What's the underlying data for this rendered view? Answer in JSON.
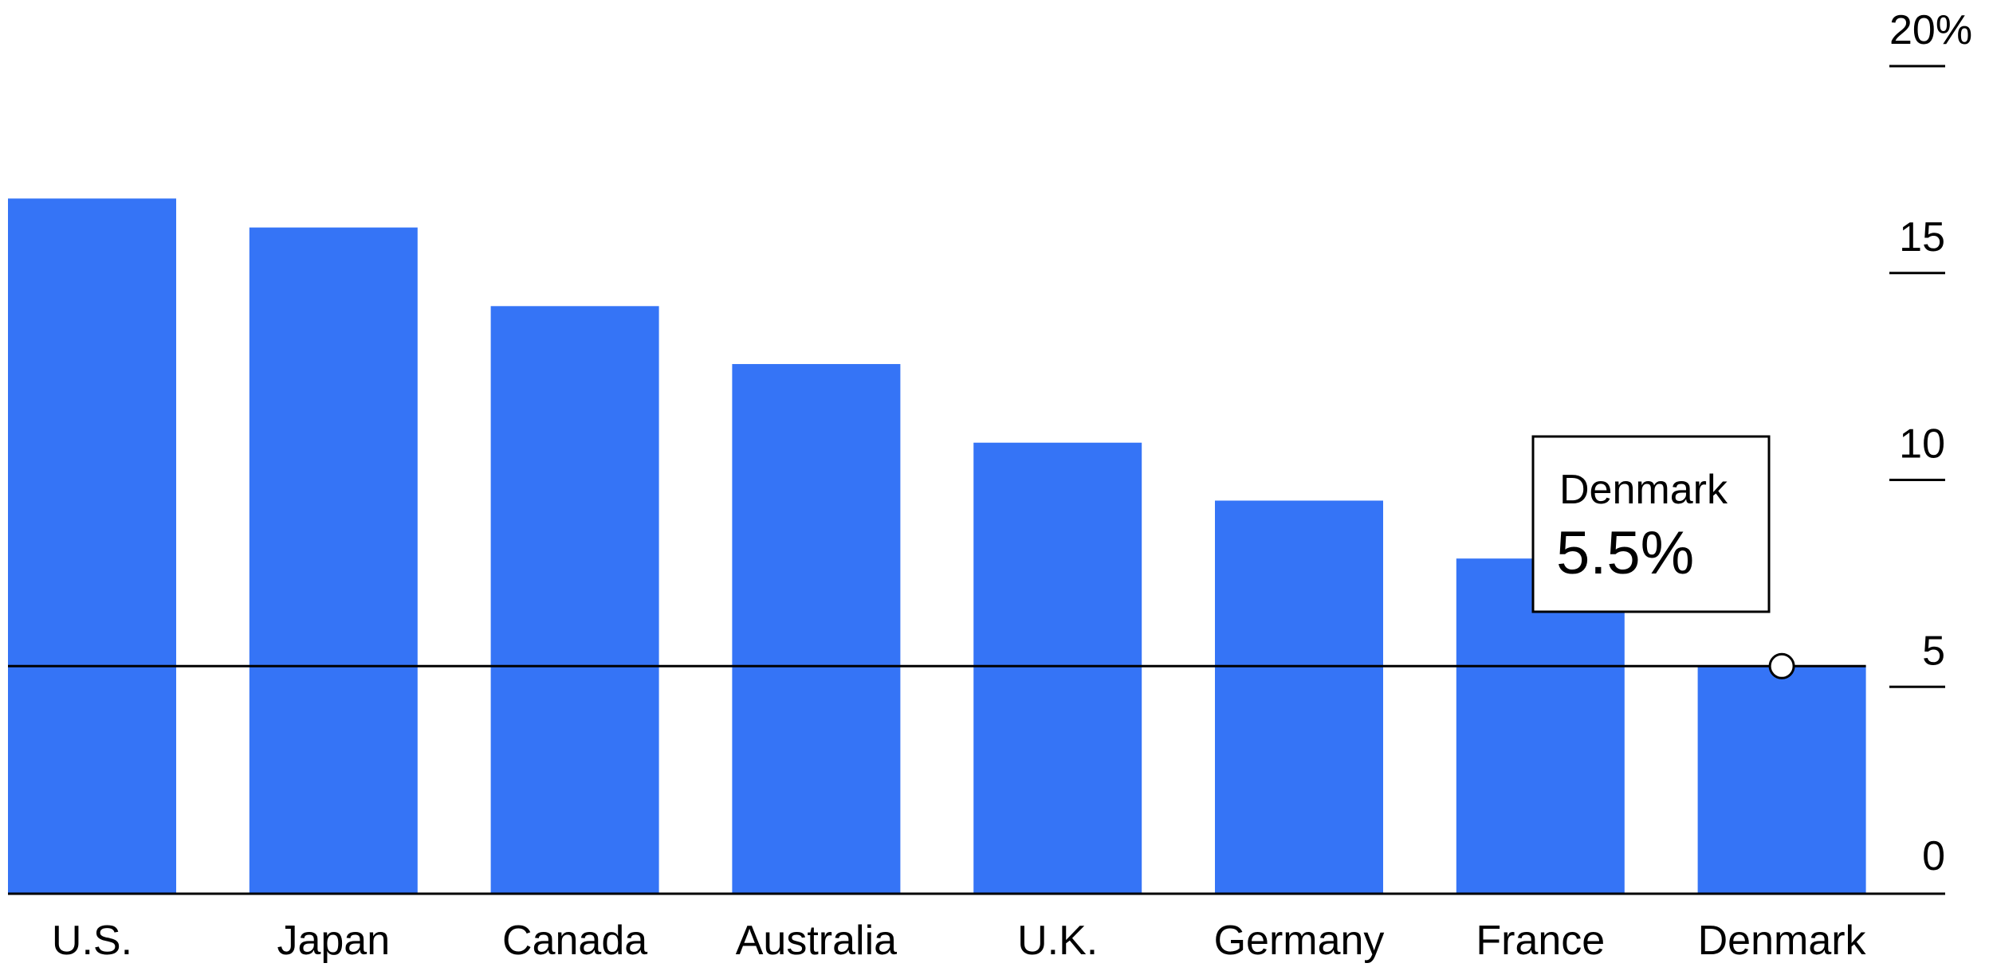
{
  "chart_data": {
    "type": "bar",
    "categories": [
      "U.S.",
      "Japan",
      "Canada",
      "Australia",
      "U.K.",
      "Germany",
      "France",
      "Denmark"
    ],
    "values": [
      16.8,
      16.1,
      14.2,
      12.8,
      10.9,
      9.5,
      8.1,
      5.5
    ],
    "ylim": [
      0,
      20
    ],
    "yticks": [
      0,
      5,
      10,
      15,
      20
    ],
    "ytick_labels": [
      "0",
      "5",
      "10",
      "15",
      "20%"
    ],
    "y_axis_position": "right",
    "grid": false,
    "reference_line": {
      "value": 5.5
    },
    "annotation": {
      "label": "Denmark",
      "value_label": "5.5%"
    },
    "colors": {
      "bar": "#3574F6",
      "axis": "#000000"
    }
  }
}
